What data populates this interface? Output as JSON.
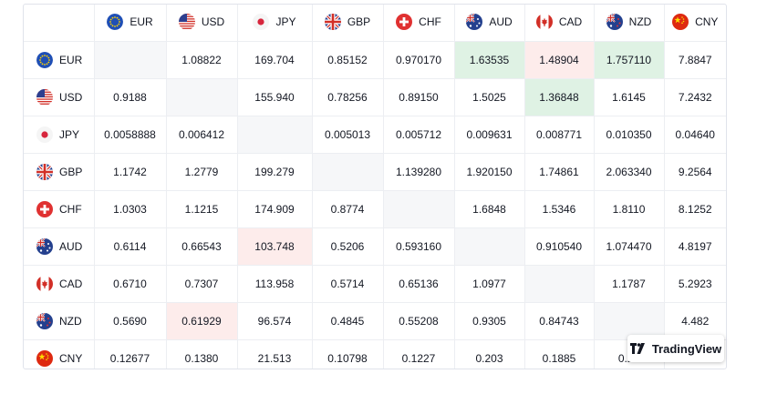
{
  "widget": {
    "brand": "TradingView"
  },
  "colors": {
    "positive_bg": "#dff2e4",
    "negative_bg": "#fdeceb",
    "diagonal_bg": "#f6f7f9"
  },
  "currencies": [
    {
      "code": "EUR",
      "flag": "eu-flag-icon"
    },
    {
      "code": "USD",
      "flag": "us-flag-icon"
    },
    {
      "code": "JPY",
      "flag": "jp-flag-icon"
    },
    {
      "code": "GBP",
      "flag": "gb-flag-icon"
    },
    {
      "code": "CHF",
      "flag": "ch-flag-icon"
    },
    {
      "code": "AUD",
      "flag": "au-flag-icon"
    },
    {
      "code": "CAD",
      "flag": "ca-flag-icon"
    },
    {
      "code": "NZD",
      "flag": "nz-flag-icon"
    },
    {
      "code": "CNY",
      "flag": "cn-flag-icon"
    }
  ],
  "rows": [
    {
      "code": "EUR",
      "cells": [
        {
          "v": "",
          "s": "diag"
        },
        {
          "v": "1.08822"
        },
        {
          "v": "169.704"
        },
        {
          "v": "0.85152"
        },
        {
          "v": "0.970170"
        },
        {
          "v": "1.63535",
          "s": "pos"
        },
        {
          "v": "1.48904",
          "s": "neg"
        },
        {
          "v": "1.757110",
          "s": "pos"
        },
        {
          "v": "7.8847"
        }
      ]
    },
    {
      "code": "USD",
      "cells": [
        {
          "v": "0.9188"
        },
        {
          "v": "",
          "s": "diag"
        },
        {
          "v": "155.940"
        },
        {
          "v": "0.78256"
        },
        {
          "v": "0.89150"
        },
        {
          "v": "1.5025"
        },
        {
          "v": "1.36848",
          "s": "pos"
        },
        {
          "v": "1.6145"
        },
        {
          "v": "7.2432"
        }
      ]
    },
    {
      "code": "JPY",
      "cells": [
        {
          "v": "0.0058888"
        },
        {
          "v": "0.006412"
        },
        {
          "v": "",
          "s": "diag"
        },
        {
          "v": "0.005013"
        },
        {
          "v": "0.005712"
        },
        {
          "v": "0.009631"
        },
        {
          "v": "0.008771"
        },
        {
          "v": "0.010350"
        },
        {
          "v": "0.04640"
        }
      ]
    },
    {
      "code": "GBP",
      "cells": [
        {
          "v": "1.1742"
        },
        {
          "v": "1.2779"
        },
        {
          "v": "199.279"
        },
        {
          "v": "",
          "s": "diag"
        },
        {
          "v": "1.139280"
        },
        {
          "v": "1.920150"
        },
        {
          "v": "1.74861"
        },
        {
          "v": "2.063340"
        },
        {
          "v": "9.2564"
        }
      ]
    },
    {
      "code": "CHF",
      "cells": [
        {
          "v": "1.0303"
        },
        {
          "v": "1.1215"
        },
        {
          "v": "174.909"
        },
        {
          "v": "0.8774"
        },
        {
          "v": "",
          "s": "diag"
        },
        {
          "v": "1.6848"
        },
        {
          "v": "1.5346"
        },
        {
          "v": "1.8110"
        },
        {
          "v": "8.1252"
        }
      ]
    },
    {
      "code": "AUD",
      "cells": [
        {
          "v": "0.6114"
        },
        {
          "v": "0.66543"
        },
        {
          "v": "103.748",
          "s": "neg"
        },
        {
          "v": "0.5206"
        },
        {
          "v": "0.593160"
        },
        {
          "v": "",
          "s": "diag"
        },
        {
          "v": "0.910540"
        },
        {
          "v": "1.074470"
        },
        {
          "v": "4.8197"
        }
      ]
    },
    {
      "code": "CAD",
      "cells": [
        {
          "v": "0.6710"
        },
        {
          "v": "0.7307"
        },
        {
          "v": "113.958"
        },
        {
          "v": "0.5714"
        },
        {
          "v": "0.65136"
        },
        {
          "v": "1.0977"
        },
        {
          "v": "",
          "s": "diag"
        },
        {
          "v": "1.1787"
        },
        {
          "v": "5.2923"
        }
      ]
    },
    {
      "code": "NZD",
      "cells": [
        {
          "v": "0.5690"
        },
        {
          "v": "0.61929",
          "s": "neg"
        },
        {
          "v": "96.574"
        },
        {
          "v": "0.4845"
        },
        {
          "v": "0.55208"
        },
        {
          "v": "0.9305"
        },
        {
          "v": "0.84743"
        },
        {
          "v": "",
          "s": "diag"
        },
        {
          "v": "4.482"
        }
      ]
    },
    {
      "code": "CNY",
      "cells": [
        {
          "v": "0.12677"
        },
        {
          "v": "0.1380"
        },
        {
          "v": "21.513"
        },
        {
          "v": "0.10798"
        },
        {
          "v": "0.1227"
        },
        {
          "v": "0.203"
        },
        {
          "v": "0.1885"
        },
        {
          "v": "0.21"
        },
        {
          "v": ""
        }
      ]
    }
  ]
}
